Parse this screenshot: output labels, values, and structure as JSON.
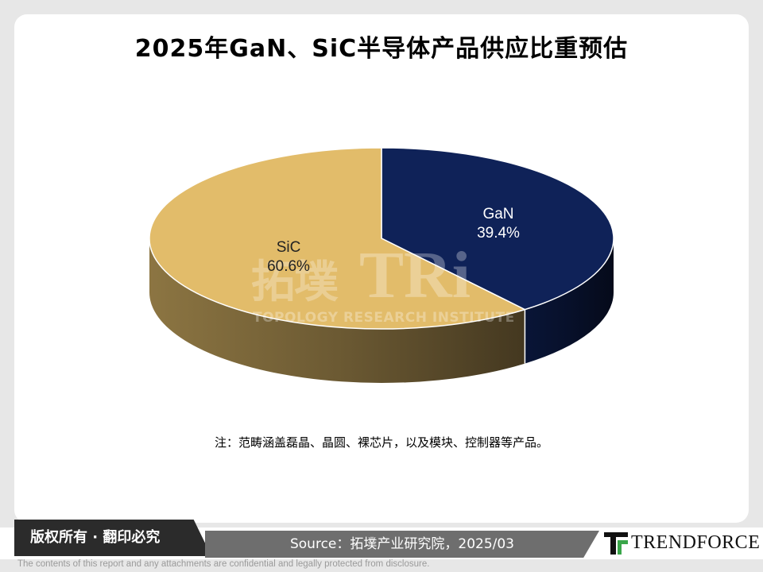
{
  "title": "2025年GaN、SiC半导体产品供应比重预估",
  "chart_data": {
    "type": "pie",
    "style": "3d",
    "title": "2025年GaN、SiC半导体产品供应比重预估",
    "slices": [
      {
        "label": "GaN",
        "value": 39.4,
        "value_label": "39.4%",
        "color": "#0f2258"
      },
      {
        "label": "SiC",
        "value": 60.6,
        "value_label": "60.6%",
        "color": "#e2bc6a"
      }
    ]
  },
  "note": "注：范畴涵盖磊晶、晶圆、裸芯片，以及模块、控制器等产品。",
  "watermark": {
    "cn": "拓墣",
    "brand": "TRi",
    "sub": "TOPOLOGY RESEARCH INSTITUTE"
  },
  "footer": {
    "copyright": "版权所有 · 翻印必究",
    "source": "Source：拓墣产业研究院，2025/03",
    "logo_text": "TRENDFORCE",
    "disclaimer": "The contents of this report and any attachments are confidential and legally protected from disclosure."
  }
}
